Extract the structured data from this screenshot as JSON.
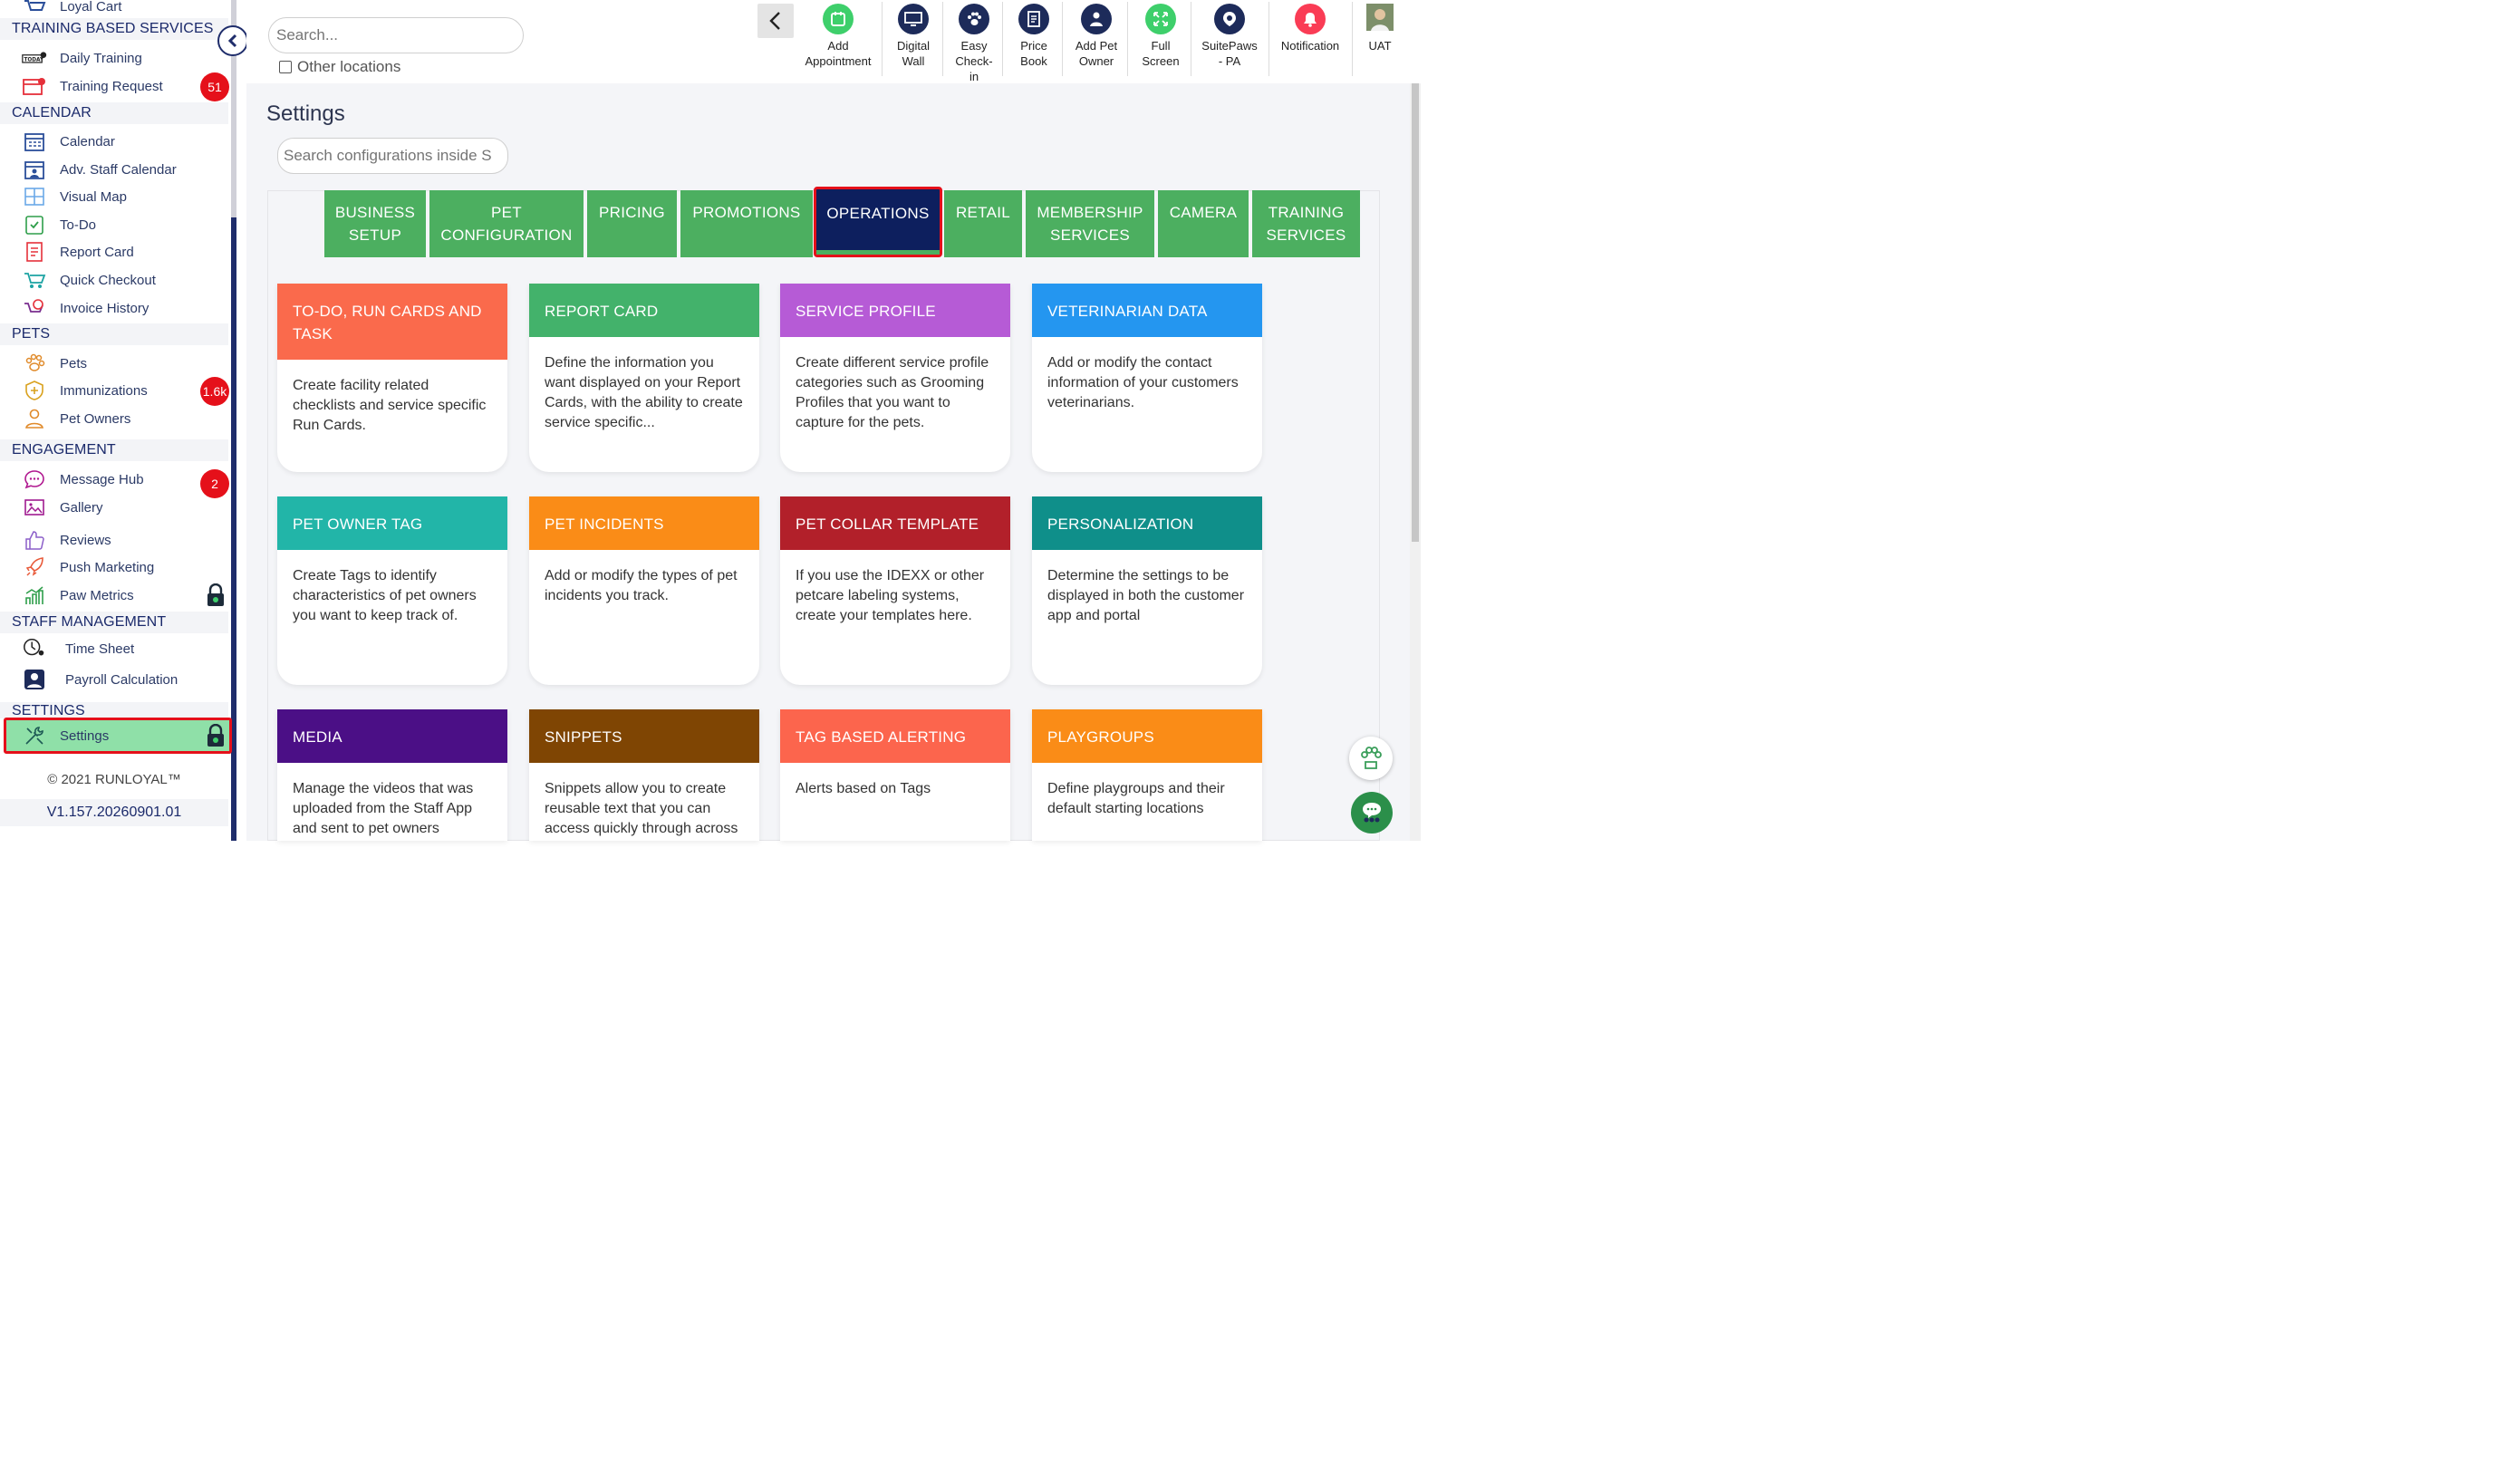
{
  "sidebar": {
    "top_item": "Loyal Cart",
    "sections": {
      "training": "TRAINING BASED SERVICES",
      "calendar": "CALENDAR",
      "pets": "PETS",
      "engagement": "ENGAGEMENT",
      "staff": "STAFF MANAGEMENT",
      "settings": "SETTINGS"
    },
    "items": {
      "daily_training": "Daily Training",
      "training_request": "Training Request",
      "calendar": "Calendar",
      "adv_staff_calendar": "Adv. Staff Calendar",
      "visual_map": "Visual Map",
      "todo": "To-Do",
      "report_card": "Report Card",
      "quick_checkout": "Quick Checkout",
      "invoice_history": "Invoice History",
      "pets": "Pets",
      "immunizations": "Immunizations",
      "pet_owners": "Pet Owners",
      "message_hub": "Message Hub",
      "gallery": "Gallery",
      "reviews": "Reviews",
      "push_marketing": "Push Marketing",
      "paw_metrics": "Paw Metrics",
      "time_sheet": "Time Sheet",
      "payroll_calculation": "Payroll Calculation",
      "settings": "Settings"
    },
    "badges": {
      "training_request": "51",
      "immunizations": "1.6k",
      "message_hub": "2"
    },
    "copyright": "© 2021  RUNLOYAL™",
    "version": "V1.157.20260901.01"
  },
  "topbar": {
    "search_placeholder": "Search...",
    "other_locations": "Other locations",
    "actions": {
      "add_appointment": [
        "Add",
        "Appointment"
      ],
      "digital_wall": [
        "Digital",
        "Wall"
      ],
      "easy_checkin": [
        "Easy",
        "Check-",
        "in"
      ],
      "price_book": [
        "Price",
        "Book"
      ],
      "add_pet_owner": [
        "Add Pet",
        "Owner"
      ],
      "full_screen": [
        "Full",
        "Screen"
      ],
      "suitepaws": [
        "SuitePaws",
        "- PA"
      ],
      "notification": [
        "Notification"
      ],
      "user": [
        "UAT"
      ]
    }
  },
  "page": {
    "title": "Settings",
    "config_search_placeholder": "Search configurations inside S"
  },
  "tabs": [
    [
      "BUSINESS",
      "SETUP"
    ],
    [
      "PET",
      "CONFIGURATION"
    ],
    [
      "PRICING"
    ],
    [
      "PROMOTIONS"
    ],
    [
      "OPERATIONS"
    ],
    [
      "RETAIL"
    ],
    [
      "MEMBERSHIP",
      "SERVICES"
    ],
    [
      "CAMERA"
    ],
    [
      "TRAINING",
      "SERVICES"
    ]
  ],
  "active_tab": "OPERATIONS",
  "cards": [
    {
      "title": "TO-DO, RUN CARDS AND TASK",
      "desc": "Create facility related checklists and service specific Run Cards.",
      "color": "#fa6a4c"
    },
    {
      "title": "REPORT CARD",
      "desc": "Define the information you want displayed on your Report Cards, with the ability to create service specific...",
      "color": "#43b26b"
    },
    {
      "title": "SERVICE PROFILE",
      "desc": "Create different service profile categories such as Grooming Profiles that you want to capture for the pets.",
      "color": "#b65bd6"
    },
    {
      "title": "VETERINARIAN DATA",
      "desc": "Add or modify the contact information of your customers veterinarians.",
      "color": "#2496f0"
    },
    {
      "title": "PET OWNER TAG",
      "desc": "Create Tags to identify characteristics of pet owners you want to keep track of.",
      "color": "#22b5a8"
    },
    {
      "title": "PET INCIDENTS",
      "desc": "Add or modify the types of pet incidents you track.",
      "color": "#fa8c17"
    },
    {
      "title": "PET COLLAR TEMPLATE",
      "desc": "If you use the IDEXX or other petcare labeling systems, create your templates here.",
      "color": "#b2202a"
    },
    {
      "title": "PERSONALIZATION",
      "desc": "Determine the settings to be displayed in both the customer app and portal",
      "color": "#0f8f8a"
    },
    {
      "title": "MEDIA",
      "desc": "Manage the videos that was uploaded from the Staff App and sent to pet owners",
      "color": "#4b0f86"
    },
    {
      "title": "SNIPPETS",
      "desc": "Snippets allow you to create reusable text that you can access quickly through across",
      "color": "#7f4503"
    },
    {
      "title": "TAG BASED ALERTING",
      "desc": "Alerts based on Tags",
      "color": "#fc654d"
    },
    {
      "title": "PLAYGROUPS",
      "desc": "Define playgroups and their default starting locations",
      "color": "#fa8c17"
    }
  ],
  "colors": {
    "sidebar_rail": "#1f2d6b",
    "tab_green": "#4caf60",
    "tab_active": "#0d1f5e",
    "highlight_red": "#e5101a"
  }
}
